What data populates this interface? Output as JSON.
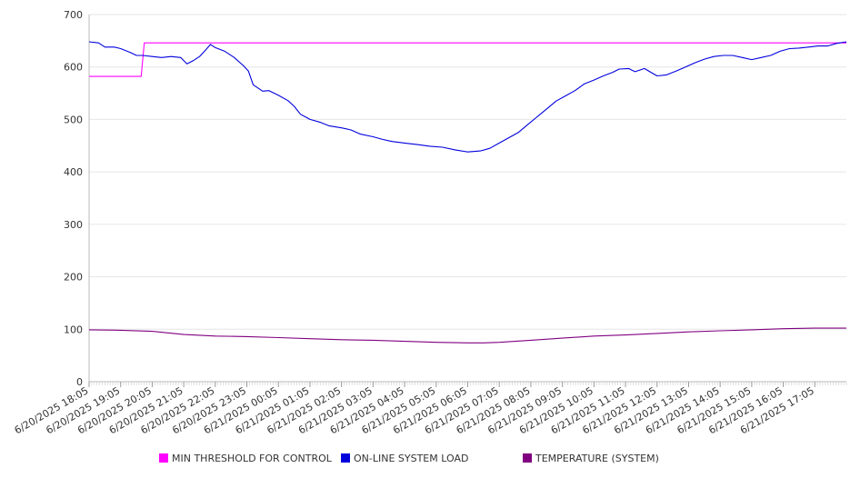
{
  "chart_data": {
    "type": "line",
    "ylim": [
      0,
      700
    ],
    "y_ticks": [
      "0",
      "100",
      "200",
      "300",
      "400",
      "500",
      "600",
      "700"
    ],
    "x_tick_labels": [
      "6/20/2025 18:05",
      "6/20/2025 19:05",
      "6/20/2025 20:05",
      "6/20/2025 21:05",
      "6/20/2025 22:05",
      "6/20/2025 23:05",
      "6/21/2025 00:05",
      "6/21/2025 01:05",
      "6/21/2025 02:05",
      "6/21/2025 03:05",
      "6/21/2025 04:05",
      "6/21/2025 05:05",
      "6/21/2025 06:05",
      "6/21/2025 07:05",
      "6/21/2025 08:05",
      "6/21/2025 09:05",
      "6/21/2025 10:05",
      "6/21/2025 11:05",
      "6/21/2025 12:05",
      "6/21/2025 13:05",
      "6/21/2025 14:05",
      "6/21/2025 15:05",
      "6/21/2025 16:05",
      "6/21/2025 17:05"
    ],
    "x_range_hours": [
      0,
      24
    ],
    "grid": "horizontal",
    "legend_position": "bottom",
    "series": [
      {
        "name": "MIN THRESHOLD FOR CONTROL",
        "color": "#ff00ff",
        "points": [
          [
            0,
            582
          ],
          [
            1.65,
            582
          ],
          [
            1.75,
            646
          ],
          [
            24,
            646
          ]
        ]
      },
      {
        "name": "ON-LINE SYSTEM LOAD",
        "color": "#0000dd",
        "points": [
          [
            0,
            648
          ],
          [
            0.3,
            646
          ],
          [
            0.5,
            638
          ],
          [
            0.8,
            638
          ],
          [
            1.0,
            635
          ],
          [
            1.3,
            628
          ],
          [
            1.5,
            622
          ],
          [
            1.7,
            622
          ],
          [
            2.0,
            620
          ],
          [
            2.3,
            618
          ],
          [
            2.6,
            620
          ],
          [
            2.9,
            618
          ],
          [
            3.1,
            606
          ],
          [
            3.3,
            612
          ],
          [
            3.5,
            620
          ],
          [
            3.7,
            633
          ],
          [
            3.85,
            643
          ],
          [
            4.0,
            637
          ],
          [
            4.3,
            630
          ],
          [
            4.6,
            618
          ],
          [
            4.9,
            602
          ],
          [
            5.05,
            592
          ],
          [
            5.2,
            566
          ],
          [
            5.5,
            554
          ],
          [
            5.7,
            555
          ],
          [
            6.0,
            546
          ],
          [
            6.3,
            536
          ],
          [
            6.5,
            525
          ],
          [
            6.7,
            510
          ],
          [
            7.0,
            500
          ],
          [
            7.3,
            495
          ],
          [
            7.6,
            488
          ],
          [
            8.0,
            484
          ],
          [
            8.3,
            480
          ],
          [
            8.6,
            472
          ],
          [
            9.0,
            467
          ],
          [
            9.3,
            462
          ],
          [
            9.6,
            458
          ],
          [
            10.0,
            455
          ],
          [
            10.4,
            452
          ],
          [
            10.8,
            449
          ],
          [
            11.2,
            447
          ],
          [
            11.6,
            442
          ],
          [
            12.0,
            438
          ],
          [
            12.4,
            440
          ],
          [
            12.7,
            445
          ],
          [
            13.0,
            455
          ],
          [
            13.3,
            465
          ],
          [
            13.6,
            475
          ],
          [
            13.9,
            490
          ],
          [
            14.2,
            505
          ],
          [
            14.5,
            520
          ],
          [
            14.8,
            535
          ],
          [
            15.1,
            545
          ],
          [
            15.4,
            555
          ],
          [
            15.7,
            568
          ],
          [
            16.0,
            575
          ],
          [
            16.3,
            583
          ],
          [
            16.6,
            590
          ],
          [
            16.8,
            596
          ],
          [
            17.1,
            597
          ],
          [
            17.3,
            591
          ],
          [
            17.6,
            597
          ],
          [
            17.8,
            590
          ],
          [
            18.0,
            583
          ],
          [
            18.3,
            585
          ],
          [
            18.6,
            592
          ],
          [
            18.9,
            600
          ],
          [
            19.2,
            608
          ],
          [
            19.5,
            615
          ],
          [
            19.8,
            620
          ],
          [
            20.1,
            622
          ],
          [
            20.4,
            622
          ],
          [
            20.7,
            618
          ],
          [
            21.0,
            614
          ],
          [
            21.3,
            618
          ],
          [
            21.6,
            622
          ],
          [
            21.9,
            630
          ],
          [
            22.2,
            635
          ],
          [
            22.5,
            636
          ],
          [
            22.8,
            638
          ],
          [
            23.1,
            640
          ],
          [
            23.4,
            640
          ],
          [
            23.7,
            645
          ],
          [
            24.0,
            648
          ]
        ]
      },
      {
        "name": "TEMPERATURE (SYSTEM)",
        "color": "#800080",
        "points": [
          [
            0,
            99
          ],
          [
            1.0,
            98
          ],
          [
            2.0,
            96
          ],
          [
            3.0,
            90
          ],
          [
            4.0,
            87
          ],
          [
            5.0,
            86
          ],
          [
            6.0,
            84
          ],
          [
            7.0,
            82
          ],
          [
            8.0,
            80
          ],
          [
            9.0,
            79
          ],
          [
            10.0,
            77
          ],
          [
            11.0,
            75
          ],
          [
            12.0,
            74
          ],
          [
            12.5,
            74
          ],
          [
            13.0,
            75
          ],
          [
            14.0,
            79
          ],
          [
            15.0,
            83
          ],
          [
            16.0,
            87
          ],
          [
            17.0,
            89
          ],
          [
            18.0,
            92
          ],
          [
            19.0,
            95
          ],
          [
            20.0,
            97
          ],
          [
            21.0,
            99
          ],
          [
            22.0,
            101
          ],
          [
            23.0,
            102
          ],
          [
            24.0,
            102
          ]
        ]
      }
    ]
  }
}
